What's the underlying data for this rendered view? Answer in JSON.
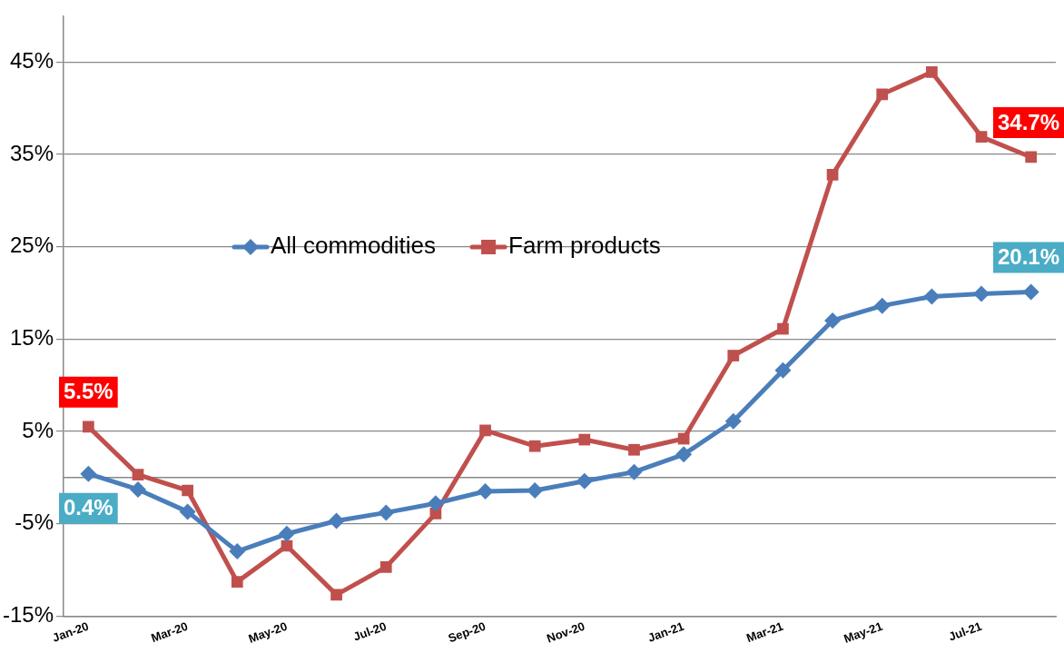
{
  "chart_data": {
    "type": "line",
    "categories": [
      "Jan-20",
      null,
      "Mar-20",
      null,
      "May-20",
      null,
      "Jul-20",
      null,
      "Sep-20",
      null,
      "Nov-20",
      null,
      "Jan-21",
      null,
      "Mar-21",
      null,
      "May-21",
      null,
      "Jul-21",
      null
    ],
    "series": [
      {
        "name": "All commodities",
        "color": "#4a7ebb",
        "marker": "diamond",
        "values": [
          0.4,
          -1.3,
          -3.7,
          -8.0,
          -6.1,
          -4.7,
          -3.8,
          -2.8,
          -1.5,
          -1.4,
          -0.4,
          0.6,
          2.5,
          6.1,
          11.6,
          17.0,
          18.6,
          19.6,
          19.9,
          20.1
        ],
        "value_labels": [
          "0.4%",
          null,
          null,
          null,
          null,
          null,
          null,
          null,
          null,
          null,
          null,
          null,
          null,
          null,
          null,
          null,
          null,
          null,
          null,
          "20.1%"
        ]
      },
      {
        "name": "Farm products",
        "color": "#c0504d",
        "marker": "square",
        "values": [
          5.5,
          0.3,
          -1.4,
          -11.3,
          -7.4,
          -12.7,
          -9.7,
          -3.9,
          5.1,
          3.4,
          4.1,
          3.0,
          4.2,
          13.2,
          16.1,
          32.8,
          41.5,
          43.9,
          36.9,
          34.7
        ],
        "value_labels": [
          "5.5%",
          null,
          null,
          null,
          null,
          null,
          null,
          null,
          null,
          null,
          null,
          null,
          null,
          null,
          null,
          null,
          null,
          null,
          null,
          "34.7%"
        ]
      }
    ],
    "ylim": [
      -15,
      50
    ],
    "yticks": [
      {
        "value": -15,
        "label": "-15%"
      },
      {
        "value": -5,
        "label": "-5%"
      },
      {
        "value": 5,
        "label": "5%"
      },
      {
        "value": 15,
        "label": "15%"
      },
      {
        "value": 25,
        "label": "25%"
      },
      {
        "value": 35,
        "label": "35%"
      },
      {
        "value": 45,
        "label": "45%"
      }
    ],
    "grid": "y",
    "legend": "left",
    "line_style": "solid"
  }
}
